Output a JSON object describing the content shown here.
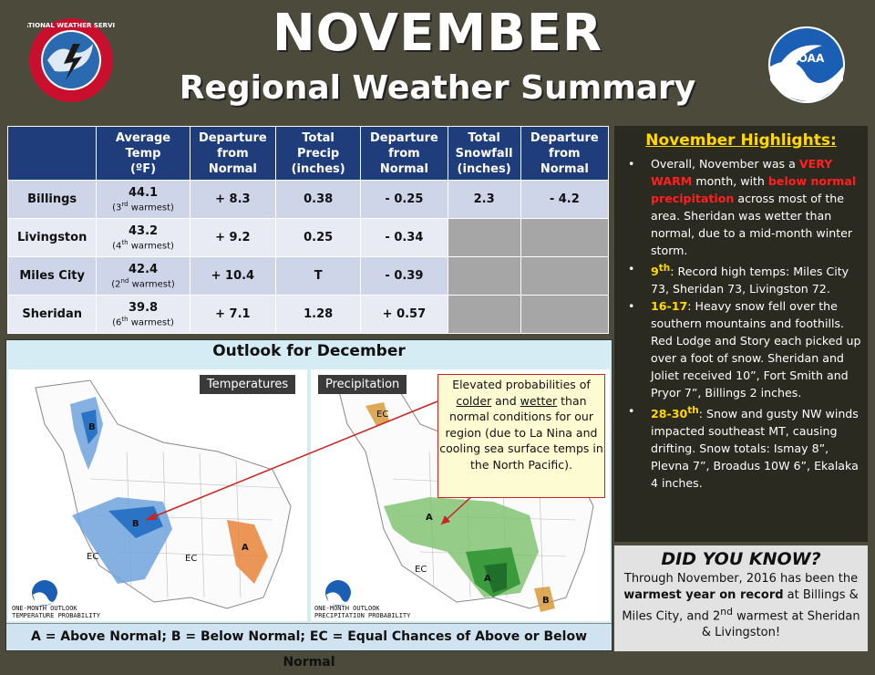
{
  "header": {
    "title": "NOVEMBER",
    "subtitle": "Regional Weather Summary",
    "nws_logo_text": "NATIONAL WEATHER SERVICE",
    "noaa_logo_text": "NOAA"
  },
  "table": {
    "headers": [
      "",
      "Average Temp (ºF)",
      "Departure from Normal",
      "Total Precip (inches)",
      "Departure from Normal",
      "Total Snowfall (inches)",
      "Departure from Normal"
    ],
    "rows": [
      {
        "city": "Billings",
        "temp": "44.1",
        "rank": "3",
        "rank_sfx": "rd",
        "rank_word": "warmest",
        "temp_dep": "+ 8.3",
        "precip": "0.38",
        "precip_dep": "- 0.25",
        "snow": "2.3",
        "snow_dep": "- 4.2"
      },
      {
        "city": "Livingston",
        "temp": "43.2",
        "rank": "4",
        "rank_sfx": "th",
        "rank_word": "warmest",
        "temp_dep": "+ 9.2",
        "precip": "0.25",
        "precip_dep": "- 0.34",
        "snow": "",
        "snow_dep": ""
      },
      {
        "city": "Miles City",
        "temp": "42.4",
        "rank": "2",
        "rank_sfx": "nd",
        "rank_word": "warmest",
        "temp_dep": "+ 10.4",
        "precip": "T",
        "precip_dep": "- 0.39",
        "snow": "",
        "snow_dep": ""
      },
      {
        "city": "Sheridan",
        "temp": "39.8",
        "rank": "6",
        "rank_sfx": "th",
        "rank_word": "warmest",
        "temp_dep": "+ 7.1",
        "precip": "1.28",
        "precip_dep": "+ 0.57",
        "snow": "",
        "snow_dep": ""
      }
    ]
  },
  "highlights": {
    "title": "November Highlights",
    "bullet": "•",
    "items": [
      {
        "pre": "Overall, November was a ",
        "em1": "VERY WARM",
        "mid": " month, with ",
        "em2": "below normal precipitation",
        "post": " across most of the area. Sheridan was wetter than normal, due to a mid-month winter storm."
      },
      {
        "key": "9",
        "key_sup": "th",
        "text": ": Record high temps: Miles City 73, Sheridan 73, Livingston 72."
      },
      {
        "key": "16-17",
        "text": ": Heavy snow fell over the southern mountains and foothills. Red Lodge and Story each picked up over a foot of snow. Sheridan and Joliet received 10”, Fort Smith and Pryor 7”, Billings 2 inches."
      },
      {
        "key": "28-30",
        "key_sup": "th",
        "text": ": Snow and gusty NW winds impacted southeast MT, causing drifting. Snow totals: Ismay 8”, Plevna 7”, Broadus 10W 6”, Ekalaka 4 inches."
      }
    ]
  },
  "did_you_know": {
    "title": "DID YOU KNOW?",
    "line1": "Through November, 2016 has been the ",
    "bold": "warmest year on record",
    "line2": " at Billings & Miles City, and 2",
    "sup": "nd",
    "line3": " warmest at Sheridan & Livingston!"
  },
  "outlook": {
    "title": "Outlook for December",
    "temp_tag": "Temperatures",
    "precip_tag": "Precipitation",
    "temp_caption": "ONE-MONTH OUTLOOK\nTEMPERATURE PROBABILITY",
    "precip_caption": "ONE-MONTH OUTLOOK\nPRECIPITATION PROBABILITY",
    "callout_1": "Elevated probabilities of ",
    "callout_colder": "colder",
    "callout_and": " and ",
    "callout_wetter": "wetter",
    "callout_2": " than normal conditions for our region (due to La Nina and cooling sea surface temps in the North Pacific).",
    "legend": "A = Above Normal;  B = Below Normal;  EC = Equal Chances of Above or Below Normal",
    "colors": {
      "above_temp": "#e8833a",
      "below_temp": "#2b73c4",
      "above_precip": "#3b9a3b",
      "below_precip": "#d79a3a"
    }
  }
}
